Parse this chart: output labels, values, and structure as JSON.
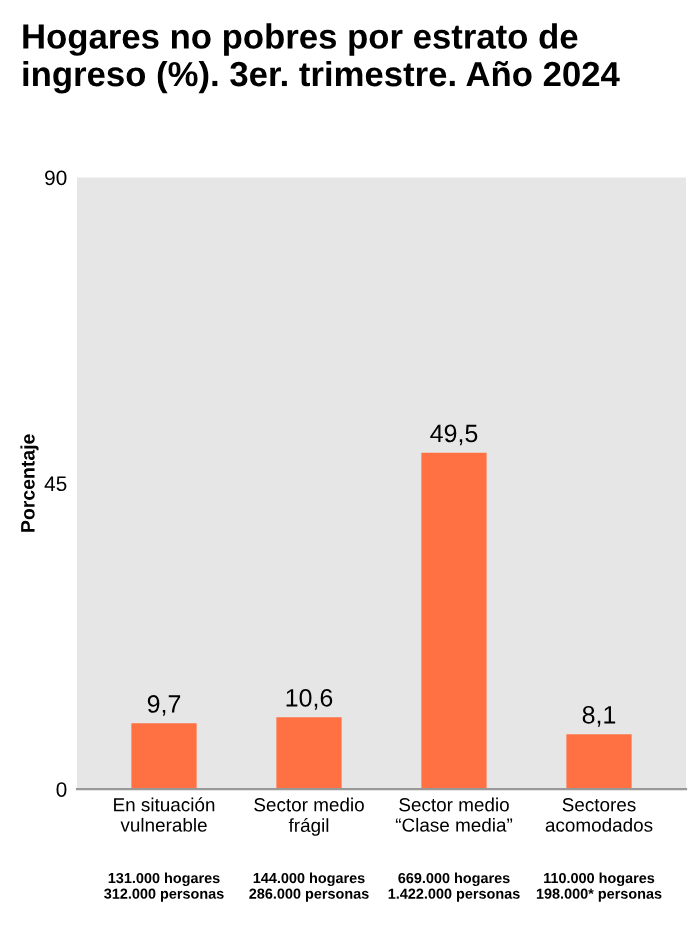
{
  "chart_data": {
    "type": "bar",
    "title": "Hogares no pobres por estrato de ingreso (%). 3er. trimestre. Año 2024",
    "ylabel": "Porcentaje",
    "categories": [
      "En situación\nvulnerable",
      "Sector medio\nfrágil",
      "Sector medio\n“Clase media”",
      "Sectores\nacomodados"
    ],
    "values": [
      9.7,
      10.6,
      49.5,
      8.1
    ],
    "value_labels": [
      "9,7",
      "10,6",
      "49,5",
      "8,1"
    ],
    "color": "#ff7043",
    "ylim": [
      0,
      90
    ],
    "yticks": [
      0,
      45,
      90
    ],
    "grid": false,
    "annotations": [
      "131.000 hogares\n312.000 personas",
      "144.000 hogares\n286.000 personas",
      "669.000 hogares\n1.422.000 personas",
      "110.000 hogares\n198.000* personas"
    ]
  }
}
